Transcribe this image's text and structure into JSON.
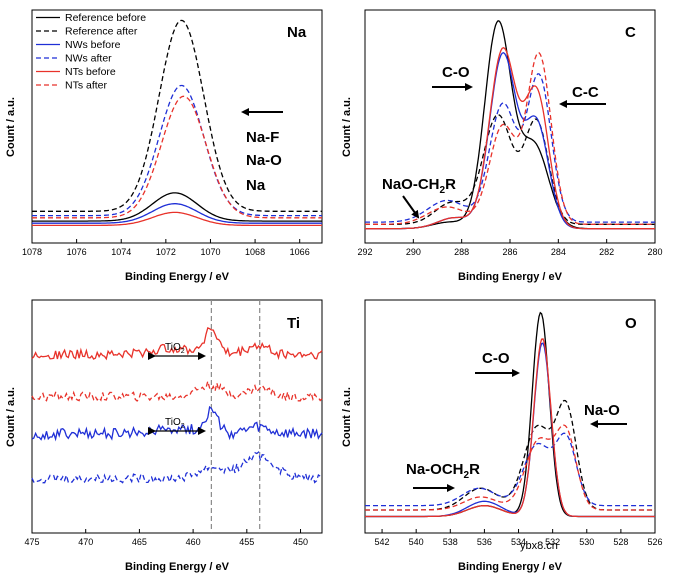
{
  "colors": {
    "black": "#000000",
    "blue": "#1f2fd6",
    "red": "#e8322a",
    "guide": "#8a8a8a"
  },
  "watermark": "ybx8.cn",
  "chart_data": [
    {
      "id": "na",
      "type": "line",
      "panel_label": "Na",
      "xlabel": "Binding Energy / eV",
      "ylabel": "Count / a.u.",
      "xlim": [
        1078,
        1065
      ],
      "ylim": [
        0,
        1
      ],
      "xticks": [
        1078,
        1076,
        1074,
        1072,
        1070,
        1068,
        1066
      ],
      "legend": {
        "position": "top-left",
        "entries": [
          {
            "label": "Reference before",
            "color": "#000000",
            "dash": false
          },
          {
            "label": "Reference after",
            "color": "#000000",
            "dash": true
          },
          {
            "label": "NWs before",
            "color": "#1f2fd6",
            "dash": false
          },
          {
            "label": "NWs after",
            "color": "#1f2fd6",
            "dash": true
          },
          {
            "label": "NTs before",
            "color": "#e8322a",
            "dash": false
          },
          {
            "label": "NTs after",
            "color": "#e8322a",
            "dash": true
          }
        ]
      },
      "annotations": [
        {
          "text": "Na-F"
        },
        {
          "text": "Na-O"
        },
        {
          "text": "Na"
        }
      ],
      "series": [
        {
          "name": "Reference before",
          "color": "#000000",
          "dash": false,
          "baseline": 0.055,
          "peaks": [
            {
              "center": 1071.6,
              "width": 1.0,
              "height": 0.13
            }
          ]
        },
        {
          "name": "Reference after",
          "color": "#000000",
          "dash": true,
          "baseline": 0.1,
          "peaks": [
            {
              "center": 1071.3,
              "width": 1.0,
              "height": 0.88
            }
          ]
        },
        {
          "name": "NWs before",
          "color": "#1f2fd6",
          "dash": false,
          "baseline": 0.045,
          "peaks": [
            {
              "center": 1071.6,
              "width": 1.0,
              "height": 0.09
            }
          ]
        },
        {
          "name": "NWs after",
          "color": "#1f2fd6",
          "dash": true,
          "baseline": 0.08,
          "peaks": [
            {
              "center": 1071.3,
              "width": 1.0,
              "height": 0.6
            }
          ]
        },
        {
          "name": "NTs before",
          "color": "#e8322a",
          "dash": false,
          "baseline": 0.035,
          "peaks": [
            {
              "center": 1071.6,
              "width": 1.0,
              "height": 0.06
            }
          ]
        },
        {
          "name": "NTs after",
          "color": "#e8322a",
          "dash": true,
          "baseline": 0.07,
          "peaks": [
            {
              "center": 1071.2,
              "width": 1.0,
              "height": 0.56
            }
          ]
        }
      ]
    },
    {
      "id": "c",
      "type": "line",
      "panel_label": "C",
      "xlabel": "Binding Energy / eV",
      "ylabel": "Count / a.u.",
      "xlim": [
        292,
        280
      ],
      "ylim": [
        0,
        1
      ],
      "xticks": [
        292,
        290,
        288,
        286,
        284,
        282,
        280
      ],
      "annotations": [
        {
          "text": "C-O"
        },
        {
          "text": "C-C"
        },
        {
          "text": "NaO-CH2R"
        }
      ],
      "series": [
        {
          "name": "Reference before",
          "color": "#000000",
          "dash": false,
          "baseline": 0.02,
          "peaks": [
            {
              "center": 286.5,
              "width": 0.55,
              "height": 0.94
            },
            {
              "center": 285.0,
              "width": 0.6,
              "height": 0.38
            },
            {
              "center": 288.5,
              "width": 0.7,
              "height": 0.03
            }
          ]
        },
        {
          "name": "Reference after",
          "color": "#000000",
          "dash": true,
          "baseline": 0.04,
          "peaks": [
            {
              "center": 286.5,
              "width": 0.6,
              "height": 0.5
            },
            {
              "center": 284.9,
              "width": 0.5,
              "height": 0.47
            },
            {
              "center": 288.4,
              "width": 0.7,
              "height": 0.1
            }
          ]
        },
        {
          "name": "NWs before",
          "color": "#1f2fd6",
          "dash": false,
          "baseline": 0.02,
          "peaks": [
            {
              "center": 286.3,
              "width": 0.55,
              "height": 0.8
            },
            {
              "center": 284.9,
              "width": 0.5,
              "height": 0.48
            },
            {
              "center": 288.3,
              "width": 0.7,
              "height": 0.05
            }
          ]
        },
        {
          "name": "NWs after",
          "color": "#1f2fd6",
          "dash": true,
          "baseline": 0.05,
          "peaks": [
            {
              "center": 286.3,
              "width": 0.55,
              "height": 0.54
            },
            {
              "center": 284.8,
              "width": 0.5,
              "height": 0.67
            },
            {
              "center": 288.6,
              "width": 0.8,
              "height": 0.1
            }
          ]
        },
        {
          "name": "NTs before",
          "color": "#e8322a",
          "dash": false,
          "baseline": 0.02,
          "peaks": [
            {
              "center": 286.3,
              "width": 0.55,
              "height": 0.82
            },
            {
              "center": 284.9,
              "width": 0.5,
              "height": 0.62
            },
            {
              "center": 288.3,
              "width": 0.7,
              "height": 0.05
            }
          ]
        },
        {
          "name": "NTs after",
          "color": "#e8322a",
          "dash": true,
          "baseline": 0.04,
          "peaks": [
            {
              "center": 286.3,
              "width": 0.55,
              "height": 0.45
            },
            {
              "center": 284.8,
              "width": 0.5,
              "height": 0.78
            },
            {
              "center": 288.6,
              "width": 0.8,
              "height": 0.08
            }
          ]
        }
      ]
    },
    {
      "id": "ti",
      "type": "line",
      "panel_label": "Ti",
      "xlabel": "Binding Energy / eV",
      "ylabel": "Count / a.u.",
      "xlim": [
        475,
        448
      ],
      "ylim": [
        0,
        1
      ],
      "xticks": [
        475,
        470,
        465,
        460,
        455,
        450
      ],
      "reference_lines": [
        458.3,
        453.8
      ],
      "annotations": [
        {
          "text": "TiO2"
        },
        {
          "text": "TiO2"
        }
      ],
      "series": [
        {
          "name": "NTs before",
          "color": "#e8322a",
          "dash": false,
          "offset": 0.78,
          "noise": 0.022,
          "peaks": [
            {
              "center": 458.3,
              "width": 0.6,
              "height": 0.11
            },
            {
              "center": 461.5,
              "width": 2.0,
              "height": 0.03
            },
            {
              "center": 454.0,
              "width": 1.0,
              "height": 0.04
            }
          ]
        },
        {
          "name": "NTs after",
          "color": "#e8322a",
          "dash": true,
          "offset": 0.59,
          "noise": 0.02,
          "peaks": [
            {
              "center": 458.5,
              "width": 1.2,
              "height": 0.05
            },
            {
              "center": 453.8,
              "width": 1.0,
              "height": 0.04
            }
          ]
        },
        {
          "name": "NWs before",
          "color": "#1f2fd6",
          "dash": false,
          "offset": 0.42,
          "noise": 0.025,
          "peaks": [
            {
              "center": 458.3,
              "width": 0.6,
              "height": 0.1
            },
            {
              "center": 461.8,
              "width": 2.0,
              "height": 0.03
            },
            {
              "center": 454.0,
              "width": 1.0,
              "height": 0.03
            }
          ]
        },
        {
          "name": "NWs after",
          "color": "#1f2fd6",
          "dash": true,
          "offset": 0.22,
          "noise": 0.02,
          "peaks": [
            {
              "center": 458.3,
              "width": 1.2,
              "height": 0.05
            },
            {
              "center": 453.9,
              "width": 1.5,
              "height": 0.1
            }
          ]
        }
      ]
    },
    {
      "id": "o",
      "type": "line",
      "panel_label": "O",
      "xlabel": "Binding Energy / eV",
      "ylabel": "Count / a.u.",
      "xlim": [
        543,
        526
      ],
      "ylim": [
        0,
        1
      ],
      "xticks": [
        542,
        540,
        538,
        536,
        534,
        532,
        530,
        528,
        526
      ],
      "annotations": [
        {
          "text": "C-O"
        },
        {
          "text": "Na-O"
        },
        {
          "text": "Na-OCH2R"
        }
      ],
      "series": [
        {
          "name": "Reference before",
          "color": "#000000",
          "dash": false,
          "baseline": 0.03,
          "peaks": [
            {
              "center": 532.7,
              "width": 0.5,
              "height": 0.94
            },
            {
              "center": 536.0,
              "width": 1.0,
              "height": 0.05
            }
          ]
        },
        {
          "name": "Reference after",
          "color": "#000000",
          "dash": true,
          "baseline": 0.06,
          "peaks": [
            {
              "center": 532.9,
              "width": 0.8,
              "height": 0.38
            },
            {
              "center": 531.2,
              "width": 0.6,
              "height": 0.46
            },
            {
              "center": 536.2,
              "width": 1.0,
              "height": 0.1
            }
          ]
        },
        {
          "name": "NWs before",
          "color": "#1f2fd6",
          "dash": false,
          "baseline": 0.03,
          "peaks": [
            {
              "center": 532.6,
              "width": 0.5,
              "height": 0.8
            },
            {
              "center": 536.0,
              "width": 1.0,
              "height": 0.07
            }
          ]
        },
        {
          "name": "NWs after",
          "color": "#1f2fd6",
          "dash": true,
          "baseline": 0.08,
          "peaks": [
            {
              "center": 532.9,
              "width": 0.8,
              "height": 0.28
            },
            {
              "center": 531.2,
              "width": 0.6,
              "height": 0.3
            },
            {
              "center": 536.3,
              "width": 1.0,
              "height": 0.08
            }
          ]
        },
        {
          "name": "NTs before",
          "color": "#e8322a",
          "dash": false,
          "baseline": 0.03,
          "peaks": [
            {
              "center": 532.6,
              "width": 0.5,
              "height": 0.82
            },
            {
              "center": 536.0,
              "width": 1.0,
              "height": 0.05
            }
          ]
        },
        {
          "name": "NTs after",
          "color": "#e8322a",
          "dash": true,
          "baseline": 0.06,
          "peaks": [
            {
              "center": 532.8,
              "width": 0.8,
              "height": 0.32
            },
            {
              "center": 531.2,
              "width": 0.6,
              "height": 0.34
            },
            {
              "center": 536.2,
              "width": 1.0,
              "height": 0.06
            }
          ]
        }
      ]
    }
  ]
}
